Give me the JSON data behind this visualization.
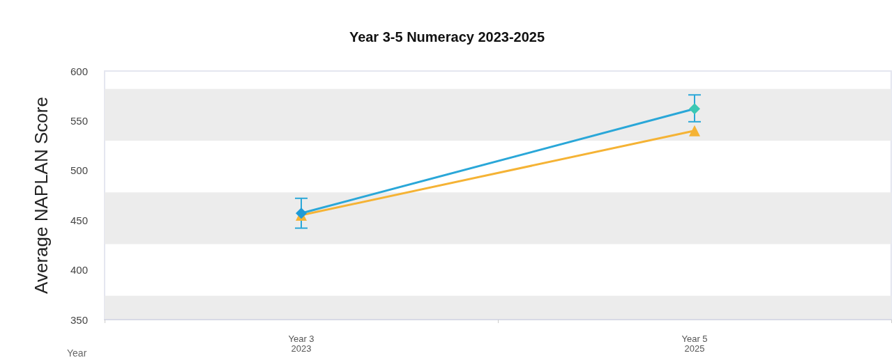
{
  "chart_data": {
    "type": "line",
    "title": "Year 3-5 Numeracy 2023-2025",
    "xlabel": "Year",
    "ylabel": "Average NAPLAN Score",
    "categories": [
      "Year 3\n2023",
      "Year 5\n2025"
    ],
    "series": [
      {
        "color": "#f5b335",
        "marker": "triangle",
        "values": [
          455,
          540
        ]
      },
      {
        "color": "#2aa7d8",
        "colors": [
          "#1e9bd7",
          "#3cc8b4"
        ],
        "marker": "diamond",
        "values": [
          457,
          562
        ],
        "errors": [
          [
            442,
            472
          ],
          [
            549,
            576
          ]
        ]
      }
    ],
    "bands": [
      {
        "axis": "y",
        "from": 530,
        "to": 582,
        "color": "#ececec"
      },
      {
        "axis": "y",
        "from": 426,
        "to": 478,
        "color": "#ececec"
      },
      {
        "axis": "y",
        "from": 350,
        "to": 374,
        "color": "#ececec"
      }
    ],
    "ylim": [
      350,
      600
    ],
    "yticks": [
      350,
      400,
      450,
      500,
      550,
      600
    ],
    "line_style": "solid"
  }
}
